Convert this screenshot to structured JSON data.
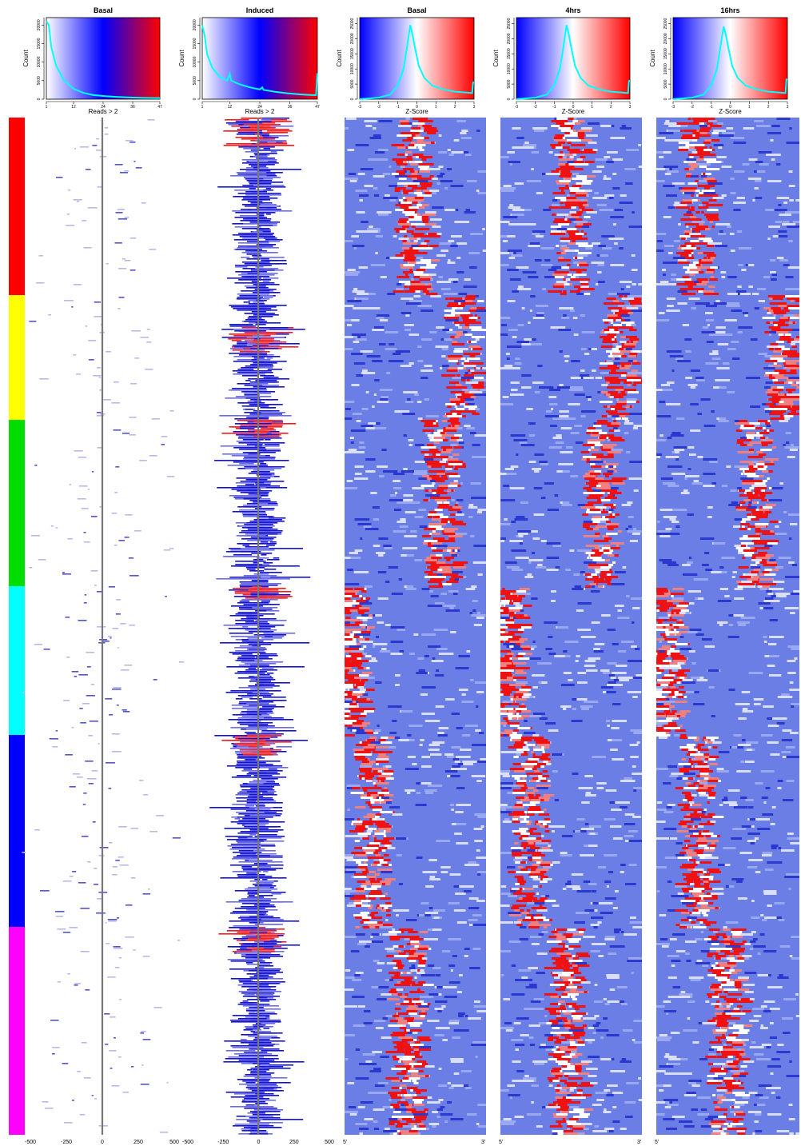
{
  "chart_data": {
    "type": "heatmap",
    "clusters": [
      {
        "color": "#ff0000",
        "rows": 222
      },
      {
        "color": "#ffff00",
        "rows": 156
      },
      {
        "color": "#00dd00",
        "rows": 208
      },
      {
        "color": "#00ffff",
        "rows": 186
      },
      {
        "color": "#0000ff",
        "rows": 240
      },
      {
        "color": "#ff00ff",
        "rows": 260
      }
    ],
    "read_panels": [
      {
        "title": "Basal",
        "xlabel": "Reads > 2",
        "ylabel": "Count",
        "legend_ticks": [
          "1",
          "12",
          "24",
          "36",
          "47"
        ],
        "legend_range": [
          1,
          47
        ],
        "yticks": [
          "0",
          "5000",
          "10000",
          "15000",
          "20000"
        ],
        "ylim": [
          0,
          22000
        ],
        "density_curve": [
          [
            1,
            21000
          ],
          [
            2,
            20000
          ],
          [
            3,
            14000
          ],
          [
            5,
            9000
          ],
          [
            8,
            5200
          ],
          [
            12,
            2800
          ],
          [
            16,
            1700
          ],
          [
            20,
            1100
          ],
          [
            25,
            800
          ],
          [
            30,
            600
          ],
          [
            35,
            450
          ],
          [
            40,
            350
          ],
          [
            45,
            300
          ],
          [
            47,
            300
          ]
        ],
        "axis_ticks": [
          "-500",
          "-250",
          "0",
          "250",
          "500"
        ],
        "x_range": [
          -500,
          500
        ],
        "density": "sparse"
      },
      {
        "title": "Induced",
        "xlabel": "Reads > 2",
        "ylabel": "Count",
        "legend_ticks": [
          "1",
          "12",
          "24",
          "36",
          "47"
        ],
        "legend_range": [
          1,
          47
        ],
        "yticks": [
          "0",
          "5000",
          "10000",
          "15000",
          "20000"
        ],
        "ylim": [
          0,
          22000
        ],
        "density_curve": [
          [
            1,
            20000
          ],
          [
            2,
            17000
          ],
          [
            3,
            12000
          ],
          [
            5,
            8500
          ],
          [
            8,
            6000
          ],
          [
            11,
            5000
          ],
          [
            12,
            6800
          ],
          [
            12.6,
            5000
          ],
          [
            16,
            4000
          ],
          [
            20,
            3200
          ],
          [
            24,
            2600
          ],
          [
            25,
            3200
          ],
          [
            25.5,
            2500
          ],
          [
            30,
            2000
          ],
          [
            35,
            1600
          ],
          [
            40,
            1300
          ],
          [
            45,
            1100
          ],
          [
            46.5,
            1100
          ],
          [
            47,
            7000
          ]
        ],
        "axis_ticks": [
          "-500",
          "-250",
          "0",
          "250",
          "500"
        ],
        "x_range": [
          -500,
          500
        ],
        "density": "dense"
      }
    ],
    "zscore_panels": [
      {
        "title": "Basal",
        "xlabel": "Z-Score",
        "ylabel": "Count",
        "legend_ticks": [
          "-3",
          "-2",
          "-1",
          "0",
          "1",
          "2",
          "3"
        ],
        "legend_range": [
          -3,
          3
        ],
        "yticks": [
          "0",
          "5000",
          "10000",
          "15000",
          "20000",
          "25000"
        ],
        "ylim": [
          0,
          27000
        ],
        "density_curve": [
          [
            -3,
            0
          ],
          [
            -2,
            500
          ],
          [
            -1.4,
            1500
          ],
          [
            -1,
            4500
          ],
          [
            -0.7,
            10000
          ],
          [
            -0.5,
            18000
          ],
          [
            -0.35,
            24500
          ],
          [
            -0.25,
            22000
          ],
          [
            -0.1,
            17000
          ],
          [
            0.1,
            11000
          ],
          [
            0.4,
            7000
          ],
          [
            0.8,
            4500
          ],
          [
            1.4,
            3200
          ],
          [
            2,
            2500
          ],
          [
            2.6,
            2200
          ],
          [
            2.9,
            2000
          ],
          [
            2.95,
            5500
          ],
          [
            3,
            5500
          ]
        ],
        "axis_ticks": [
          "5'",
          "3'"
        ],
        "red_centers": [
          0.5,
          0.85,
          0.7,
          0.06,
          0.2,
          0.46
        ]
      },
      {
        "title": "4hrs",
        "xlabel": "Z-Score",
        "ylabel": "Count",
        "legend_ticks": [
          "-3",
          "-2",
          "-1",
          "0",
          "1",
          "2",
          "3"
        ],
        "legend_range": [
          -3,
          3
        ],
        "yticks": [
          "0",
          "5000",
          "10000",
          "15000",
          "20000",
          "25000"
        ],
        "ylim": [
          0,
          27000
        ],
        "density_curve": [
          [
            -3,
            0
          ],
          [
            -2,
            500
          ],
          [
            -1.4,
            1500
          ],
          [
            -1,
            4500
          ],
          [
            -0.7,
            10000
          ],
          [
            -0.5,
            18000
          ],
          [
            -0.35,
            24500
          ],
          [
            -0.25,
            22000
          ],
          [
            -0.1,
            17000
          ],
          [
            0.1,
            11000
          ],
          [
            0.4,
            7000
          ],
          [
            0.8,
            4500
          ],
          [
            1.4,
            3200
          ],
          [
            2,
            2500
          ],
          [
            2.6,
            2200
          ],
          [
            2.9,
            2000
          ],
          [
            2.95,
            6000
          ],
          [
            3,
            6000
          ]
        ],
        "axis_ticks": [
          "5'",
          "3'"
        ],
        "red_centers": [
          0.5,
          0.86,
          0.72,
          0.07,
          0.22,
          0.48
        ]
      },
      {
        "title": "16hrs",
        "xlabel": "Z-Score",
        "ylabel": "Count",
        "legend_ticks": [
          "-3",
          "-2",
          "-1",
          "0",
          "1",
          "2",
          "3"
        ],
        "legend_range": [
          -3,
          3
        ],
        "yticks": [
          "0",
          "5000",
          "10000",
          "15000",
          "20000",
          "25000"
        ],
        "ylim": [
          0,
          27000
        ],
        "density_curve": [
          [
            -3,
            0
          ],
          [
            -2,
            500
          ],
          [
            -1.4,
            1500
          ],
          [
            -1,
            4500
          ],
          [
            -0.7,
            10000
          ],
          [
            -0.5,
            18000
          ],
          [
            -0.35,
            24000
          ],
          [
            -0.25,
            22000
          ],
          [
            -0.1,
            17000
          ],
          [
            0.1,
            11000
          ],
          [
            0.4,
            7000
          ],
          [
            0.8,
            4500
          ],
          [
            1.4,
            3200
          ],
          [
            2,
            2500
          ],
          [
            2.6,
            2200
          ],
          [
            2.9,
            2000
          ],
          [
            2.95,
            6500
          ],
          [
            3,
            6500
          ]
        ],
        "axis_ticks": [
          "5'"
        ],
        "red_centers": [
          0.3,
          0.9,
          0.7,
          0.08,
          0.3,
          0.5
        ]
      }
    ]
  }
}
